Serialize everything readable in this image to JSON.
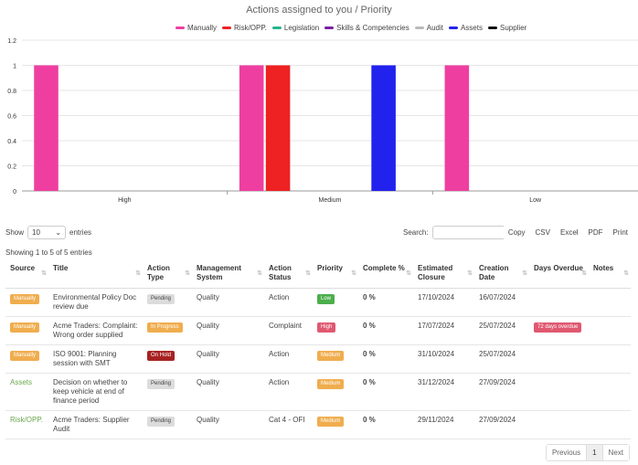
{
  "chart_data": {
    "type": "bar",
    "title": "Actions assigned to you / Priority",
    "categories": [
      "High",
      "Medium",
      "Low"
    ],
    "series": [
      {
        "name": "Manually",
        "color": "#ee3fa1",
        "values": [
          1,
          1,
          1
        ]
      },
      {
        "name": "Risk/OPP.",
        "color": "#ee2222",
        "values": [
          0,
          1,
          0
        ]
      },
      {
        "name": "Legislation",
        "color": "#26b58a",
        "values": [
          0,
          0,
          0
        ]
      },
      {
        "name": "Skills & Competencies",
        "color": "#7b1fa2",
        "values": [
          0,
          0,
          0
        ]
      },
      {
        "name": "Audit",
        "color": "#bbbbbb",
        "values": [
          0,
          0,
          0
        ]
      },
      {
        "name": "Assets",
        "color": "#2222ee",
        "values": [
          0,
          1,
          0
        ]
      },
      {
        "name": "Supplier",
        "color": "#111111",
        "values": [
          0,
          0,
          0
        ]
      }
    ],
    "ylim": [
      0,
      1.2
    ],
    "y_ticks": [
      "0",
      "0.2",
      "0.4",
      "0.6",
      "0.8",
      "1",
      "1.2"
    ],
    "xlabel": "",
    "ylabel": "",
    "grid": true,
    "legend_position": "top"
  },
  "controls": {
    "show_label": "Show",
    "length_value": "10",
    "entries_label": "entries",
    "search_label": "Search:",
    "buttons": [
      "Copy",
      "CSV",
      "Excel",
      "PDF",
      "Print"
    ],
    "info": "Showing 1 to 5 of 5 entries"
  },
  "columns": [
    "Source",
    "Title",
    "Action Type",
    "Management System",
    "Action Status",
    "Priority",
    "Complete %",
    "Estimated Closure",
    "Creation Date",
    "Days Overdue",
    "Notes"
  ],
  "rows": [
    {
      "source": "Manually",
      "source_style": "badge",
      "title": "Environmental Policy Doc review due",
      "type": "Pending",
      "type_style": "grey",
      "system": "Quality",
      "status": "Action",
      "priority": "Low",
      "priority_style": "green",
      "complete": "0 %",
      "closure": "17/10/2024",
      "created": "16/07/2024",
      "overdue": "",
      "notes": ""
    },
    {
      "source": "Manually",
      "source_style": "badge",
      "title": "Acme Traders: Complaint: Wrong order supplied",
      "type": "In Progress",
      "type_style": "orange",
      "system": "Quality",
      "status": "Complaint",
      "priority": "High",
      "priority_style": "pink",
      "complete": "0 %",
      "closure": "17/07/2024",
      "created": "25/07/2024",
      "overdue": "72 days overdue",
      "notes": ""
    },
    {
      "source": "Manually",
      "source_style": "badge",
      "title": "ISO 9001: Planning session with SMT",
      "type": "On Hold",
      "type_style": "darkred",
      "system": "Quality",
      "status": "Action",
      "priority": "Medium",
      "priority_style": "orange",
      "complete": "0 %",
      "closure": "31/10/2024",
      "created": "25/07/2024",
      "overdue": "",
      "notes": ""
    },
    {
      "source": "Assets",
      "source_style": "link",
      "title": "Decision on whether to keep vehicle at end of finance period",
      "type": "Pending",
      "type_style": "grey",
      "system": "Quality",
      "status": "Action",
      "priority": "Medium",
      "priority_style": "orange",
      "complete": "0 %",
      "closure": "31/12/2024",
      "created": "27/09/2024",
      "overdue": "",
      "notes": ""
    },
    {
      "source": "Risk/OPP.",
      "source_style": "link",
      "title": "Acme Traders: Supplier Audit",
      "type": "Pending",
      "type_style": "grey",
      "system": "Quality",
      "status": "Cat 4 - OFI",
      "priority": "Medium",
      "priority_style": "orange",
      "complete": "0 %",
      "closure": "29/11/2024",
      "created": "27/09/2024",
      "overdue": "",
      "notes": ""
    }
  ],
  "pagination": {
    "previous": "Previous",
    "page": "1",
    "next": "Next"
  }
}
